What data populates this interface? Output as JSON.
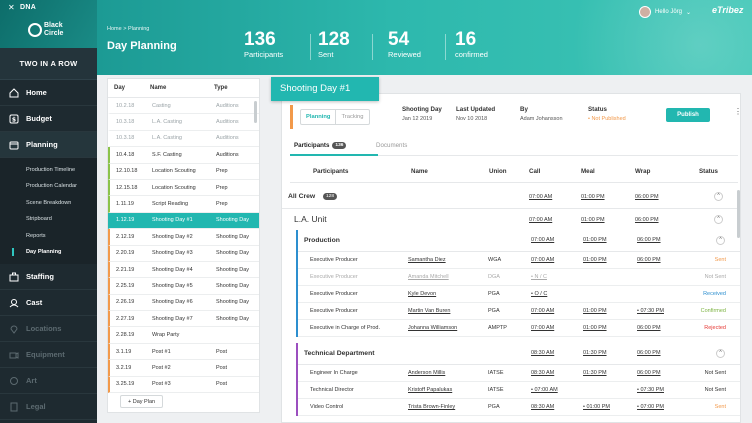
{
  "sidebar": {
    "app_name": "DNA",
    "logo_text": "Black Circle",
    "project": "TWO IN A ROW",
    "nav": [
      {
        "label": "Home",
        "icon": "home-icon"
      },
      {
        "label": "Budget",
        "icon": "dollar-icon"
      },
      {
        "label": "Planning",
        "icon": "calendar-icon"
      },
      {
        "label": "Staffing",
        "icon": "staffing-icon"
      },
      {
        "label": "Cast",
        "icon": "cast-icon"
      },
      {
        "label": "Locations",
        "icon": "location-icon"
      },
      {
        "label": "Equipment",
        "icon": "equipment-icon"
      },
      {
        "label": "Art",
        "icon": "art-icon"
      },
      {
        "label": "Legal",
        "icon": "legal-icon"
      }
    ],
    "planning_sub": [
      "Production Timeline",
      "Production Calendar",
      "Scene Breakdown",
      "Stripboard",
      "Reports",
      "Day Planning"
    ]
  },
  "header": {
    "breadcrumb": "Home  >  Planning",
    "title": "Day Planning",
    "stats": [
      {
        "num": "136",
        "label": "Participants"
      },
      {
        "num": "128",
        "label": "Sent"
      },
      {
        "num": "54",
        "label": "Reviewed"
      },
      {
        "num": "16",
        "label": "confirmed"
      }
    ],
    "greeting": "Hello Jörg",
    "brand": "eTribez"
  },
  "days": {
    "headers": [
      "Day",
      "Name",
      "Type"
    ],
    "rows": [
      {
        "day": "10.2.18",
        "name": "Casting",
        "type": "Auditions",
        "style": "past"
      },
      {
        "day": "10.3.18",
        "name": "L.A. Casting",
        "type": "Auditions",
        "style": "past"
      },
      {
        "day": "10.3.18",
        "name": "L.A. Casting",
        "type": "Auditions",
        "style": "past"
      },
      {
        "day": "10.4.18",
        "name": "S.F. Casting",
        "type": "Auditions",
        "style": "green"
      },
      {
        "day": "12.10.18",
        "name": "Location Scouting",
        "type": "Prep",
        "style": "green"
      },
      {
        "day": "12.15.18",
        "name": "Location Scouting",
        "type": "Prep",
        "style": "green"
      },
      {
        "day": "1.11.19",
        "name": "Script Reading",
        "type": "Prep",
        "style": "green"
      },
      {
        "day": "1.12.19",
        "name": "Shooting Day #1",
        "type": "Shooting Day",
        "style": "sel"
      },
      {
        "day": "2.12.19",
        "name": "Shooting Day #2",
        "type": "Shooting Day",
        "style": "orange"
      },
      {
        "day": "2.20.19",
        "name": "Shooting Day #3",
        "type": "Shooting Day",
        "style": "orange"
      },
      {
        "day": "2.21.19",
        "name": "Shooting Day #4",
        "type": "Shooting Day",
        "style": "orange"
      },
      {
        "day": "2.25.19",
        "name": "Shooting Day #5",
        "type": "Shooting Day",
        "style": "orange"
      },
      {
        "day": "2.26.19",
        "name": "Shooting Day #6",
        "type": "Shooting Day",
        "style": "orange"
      },
      {
        "day": "2.27.19",
        "name": "Shooting Day #7",
        "type": "Shooting Day",
        "style": "orange"
      },
      {
        "day": "2.28.19",
        "name": "Wrap Party",
        "type": "",
        "style": "orange"
      },
      {
        "day": "3.1.19",
        "name": "Post #1",
        "type": "Post",
        "style": "orange"
      },
      {
        "day": "3.2.19",
        "name": "Post #2",
        "type": "Post",
        "style": "orange"
      },
      {
        "day": "3.25.19",
        "name": "Post #3",
        "type": "Post",
        "style": "orange"
      }
    ],
    "add_label": "+ Day Plan"
  },
  "detail": {
    "tab_title": "Shooting Day #1",
    "modes": [
      "Planning",
      "Tracking"
    ],
    "meta": [
      {
        "k": "Shooting Day",
        "v": "Jan 12 2019"
      },
      {
        "k": "Last Updated",
        "v": "Nov 10 2018"
      },
      {
        "k": "By",
        "v": "Adam Johansson"
      },
      {
        "k": "Status",
        "v": "• Not Published"
      }
    ],
    "publish": "Publish",
    "kebab": "⋮",
    "tabs": {
      "participants": "Participants",
      "participants_count": "136",
      "documents": "Documents"
    },
    "columns": [
      "Participants",
      "Name",
      "Union",
      "Call",
      "Meal",
      "Wrap",
      "Status"
    ],
    "all_crew": {
      "label": "All Crew",
      "count": "128",
      "call": "07:00 AM",
      "meal": "01:00 PM",
      "wrap": "06:00 PM"
    },
    "unit": {
      "label": "L.A. Unit",
      "call": "07:00 AM",
      "meal": "01:00 PM",
      "wrap": "06:00 PM"
    },
    "production": {
      "label": "Production",
      "call": "07:00 AM",
      "meal": "01:00 PM",
      "wrap": "06:00 PM",
      "rows": [
        {
          "role": "Executive Producer",
          "name": "Samantha Diez",
          "union": "WGA",
          "call": "07:00 AM",
          "meal": "01:00 PM",
          "wrap": "06:00 PM",
          "status": "Sent",
          "st": "sent",
          "dim": false
        },
        {
          "role": "Executive Producer",
          "name": "Amanda Mitchell",
          "union": "DGA",
          "call": "• N / C",
          "meal": "",
          "wrap": "",
          "status": "Not Sent",
          "st": "not",
          "dim": true
        },
        {
          "role": "Executive Producer",
          "name": "Kyle Devon",
          "union": "PGA",
          "call": "• O / C",
          "meal": "",
          "wrap": "",
          "status": "Received",
          "st": "received",
          "dim": false
        },
        {
          "role": "Executive Producer",
          "name": "Martin Van Buren",
          "union": "PGA",
          "call": "07:00 AM",
          "meal": "01:00 PM",
          "wrap": "• 07:30 PM",
          "status": "Confirmed",
          "st": "confirmed",
          "dim": false
        },
        {
          "role": "Executive in Charge of Prod.",
          "name": "Johanna Williamson",
          "union": "AMPTP",
          "call": "07:00 AM",
          "meal": "01:00 PM",
          "wrap": "06:00 PM",
          "status": "Rejected",
          "st": "rejected",
          "dim": false
        }
      ]
    },
    "technical": {
      "label": "Technical Department",
      "call": "08:30 AM",
      "meal": "01:30 PM",
      "wrap": "06:00 PM",
      "rows": [
        {
          "role": "Engineer In Charge",
          "name": "Anderson Millis",
          "union": "IATSE",
          "call": "08:30 AM",
          "meal": "01:30 PM",
          "wrap": "06:00 PM",
          "status": "Not Sent",
          "st": "not",
          "dim": false
        },
        {
          "role": "Technical Director",
          "name": "Kristoff Papalukas",
          "union": "IATSE",
          "call": "• 07:00 AM",
          "meal": "",
          "wrap": "• 07:30 PM",
          "status": "Not Sent",
          "st": "not",
          "dim": false
        },
        {
          "role": "Video Control",
          "name": "Trista Brown-Finley",
          "union": "PGA",
          "call": "08:30 AM",
          "meal": "• 01:00 PM",
          "wrap": "• 07:00 PM",
          "status": "Sent",
          "st": "sent",
          "dim": false
        }
      ]
    }
  }
}
